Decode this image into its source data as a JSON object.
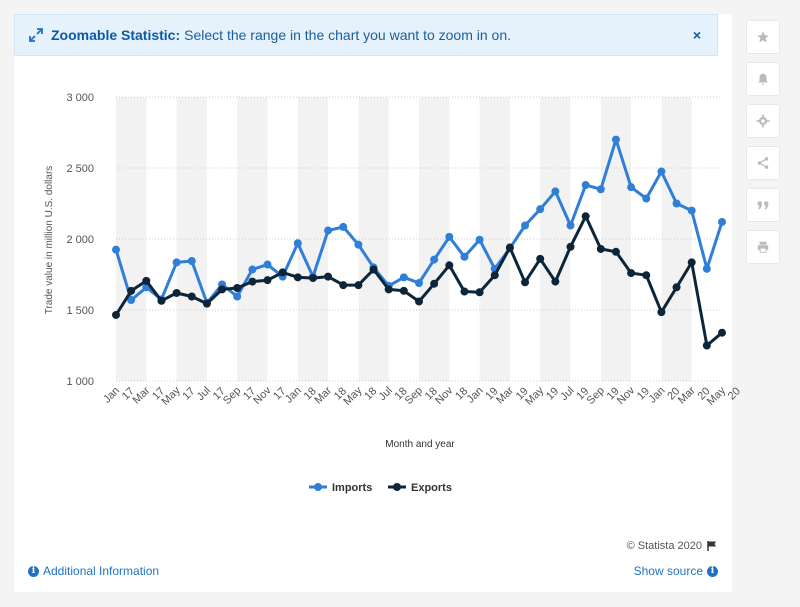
{
  "banner": {
    "title": "Zoomable Statistic:",
    "text": "Select the range in the chart you want to zoom in on.",
    "close": "×"
  },
  "sidebar": {
    "icons": [
      "star-icon",
      "bell-icon",
      "gear-icon",
      "share-icon",
      "quote-icon",
      "print-icon"
    ]
  },
  "footer": {
    "additional_info": "Additional Information",
    "show_source": "Show source",
    "credit": "© Statista 2020"
  },
  "colors": {
    "imports": "#2f7ed8",
    "exports": "#0d2538",
    "band": "#f2f2f2"
  },
  "chart_data": {
    "type": "line",
    "title": "",
    "xlabel": "Month and year",
    "ylabel": "Trade value in million U.S. dollars",
    "ylim": [
      1000,
      3000
    ],
    "yticks": [
      1000,
      1500,
      2000,
      2500,
      3000
    ],
    "ytick_labels": [
      "1 000",
      "1 500",
      "2 000",
      "2 500",
      "3 000"
    ],
    "categories": [
      "Jan 17",
      "Feb 17",
      "Mar 17",
      "Apr 17",
      "May 17",
      "Jun 17",
      "Jul 17",
      "Aug 17",
      "Sep 17",
      "Oct 17",
      "Nov 17",
      "Dec 17",
      "Jan 18",
      "Feb 18",
      "Mar 18",
      "Apr 18",
      "May 18",
      "Jun 18",
      "Jul 18",
      "Aug 18",
      "Sep 18",
      "Oct 18",
      "Nov 18",
      "Dec 18",
      "Jan 19",
      "Feb 19",
      "Mar 19",
      "Apr 19",
      "May 19",
      "Jun 19",
      "Jul 19",
      "Aug 19",
      "Sep 19",
      "Oct 19",
      "Nov 19",
      "Dec 19",
      "Jan 20",
      "Feb 20",
      "Mar 20",
      "Apr 20",
      "May 20"
    ],
    "tick_labels": [
      [
        "Jan",
        "17"
      ],
      [
        "Mar",
        "17"
      ],
      [
        "May",
        "17"
      ],
      [
        "Jul",
        "17"
      ],
      [
        "Sep",
        "17"
      ],
      [
        "Nov",
        "17"
      ],
      [
        "Jan",
        "18"
      ],
      [
        "Mar",
        "18"
      ],
      [
        "May",
        "18"
      ],
      [
        "Jul",
        "18"
      ],
      [
        "Sep",
        "18"
      ],
      [
        "Nov",
        "18"
      ],
      [
        "Jan",
        "19"
      ],
      [
        "Mar",
        "19"
      ],
      [
        "May",
        "19"
      ],
      [
        "Jul",
        "19"
      ],
      [
        "Sep",
        "19"
      ],
      [
        "Nov",
        "19"
      ],
      [
        "Jan",
        "20"
      ],
      [
        "Mar",
        "20"
      ],
      [
        "May",
        "20"
      ]
    ],
    "legend_position": "bottom-center",
    "grid": true,
    "series": [
      {
        "name": "Imports",
        "values": [
          1925,
          1570,
          1660,
          1575,
          1835,
          1845,
          1550,
          1680,
          1595,
          1785,
          1820,
          1735,
          1970,
          1735,
          2060,
          2085,
          1960,
          1800,
          1670,
          1730,
          1690,
          1855,
          2015,
          1875,
          1995,
          1790,
          1935,
          2095,
          2210,
          2335,
          2095,
          2380,
          2350,
          2700,
          2365,
          2285,
          2475,
          2250,
          2200,
          1790,
          2120
        ]
      },
      {
        "name": "Exports",
        "values": [
          1465,
          1635,
          1705,
          1565,
          1620,
          1595,
          1545,
          1645,
          1655,
          1700,
          1710,
          1765,
          1730,
          1725,
          1735,
          1675,
          1675,
          1785,
          1645,
          1635,
          1560,
          1685,
          1815,
          1630,
          1625,
          1745,
          1940,
          1695,
          1860,
          1700,
          1945,
          2160,
          1930,
          1910,
          1760,
          1745,
          1485,
          1660,
          1835,
          1250,
          1340
        ]
      }
    ]
  }
}
